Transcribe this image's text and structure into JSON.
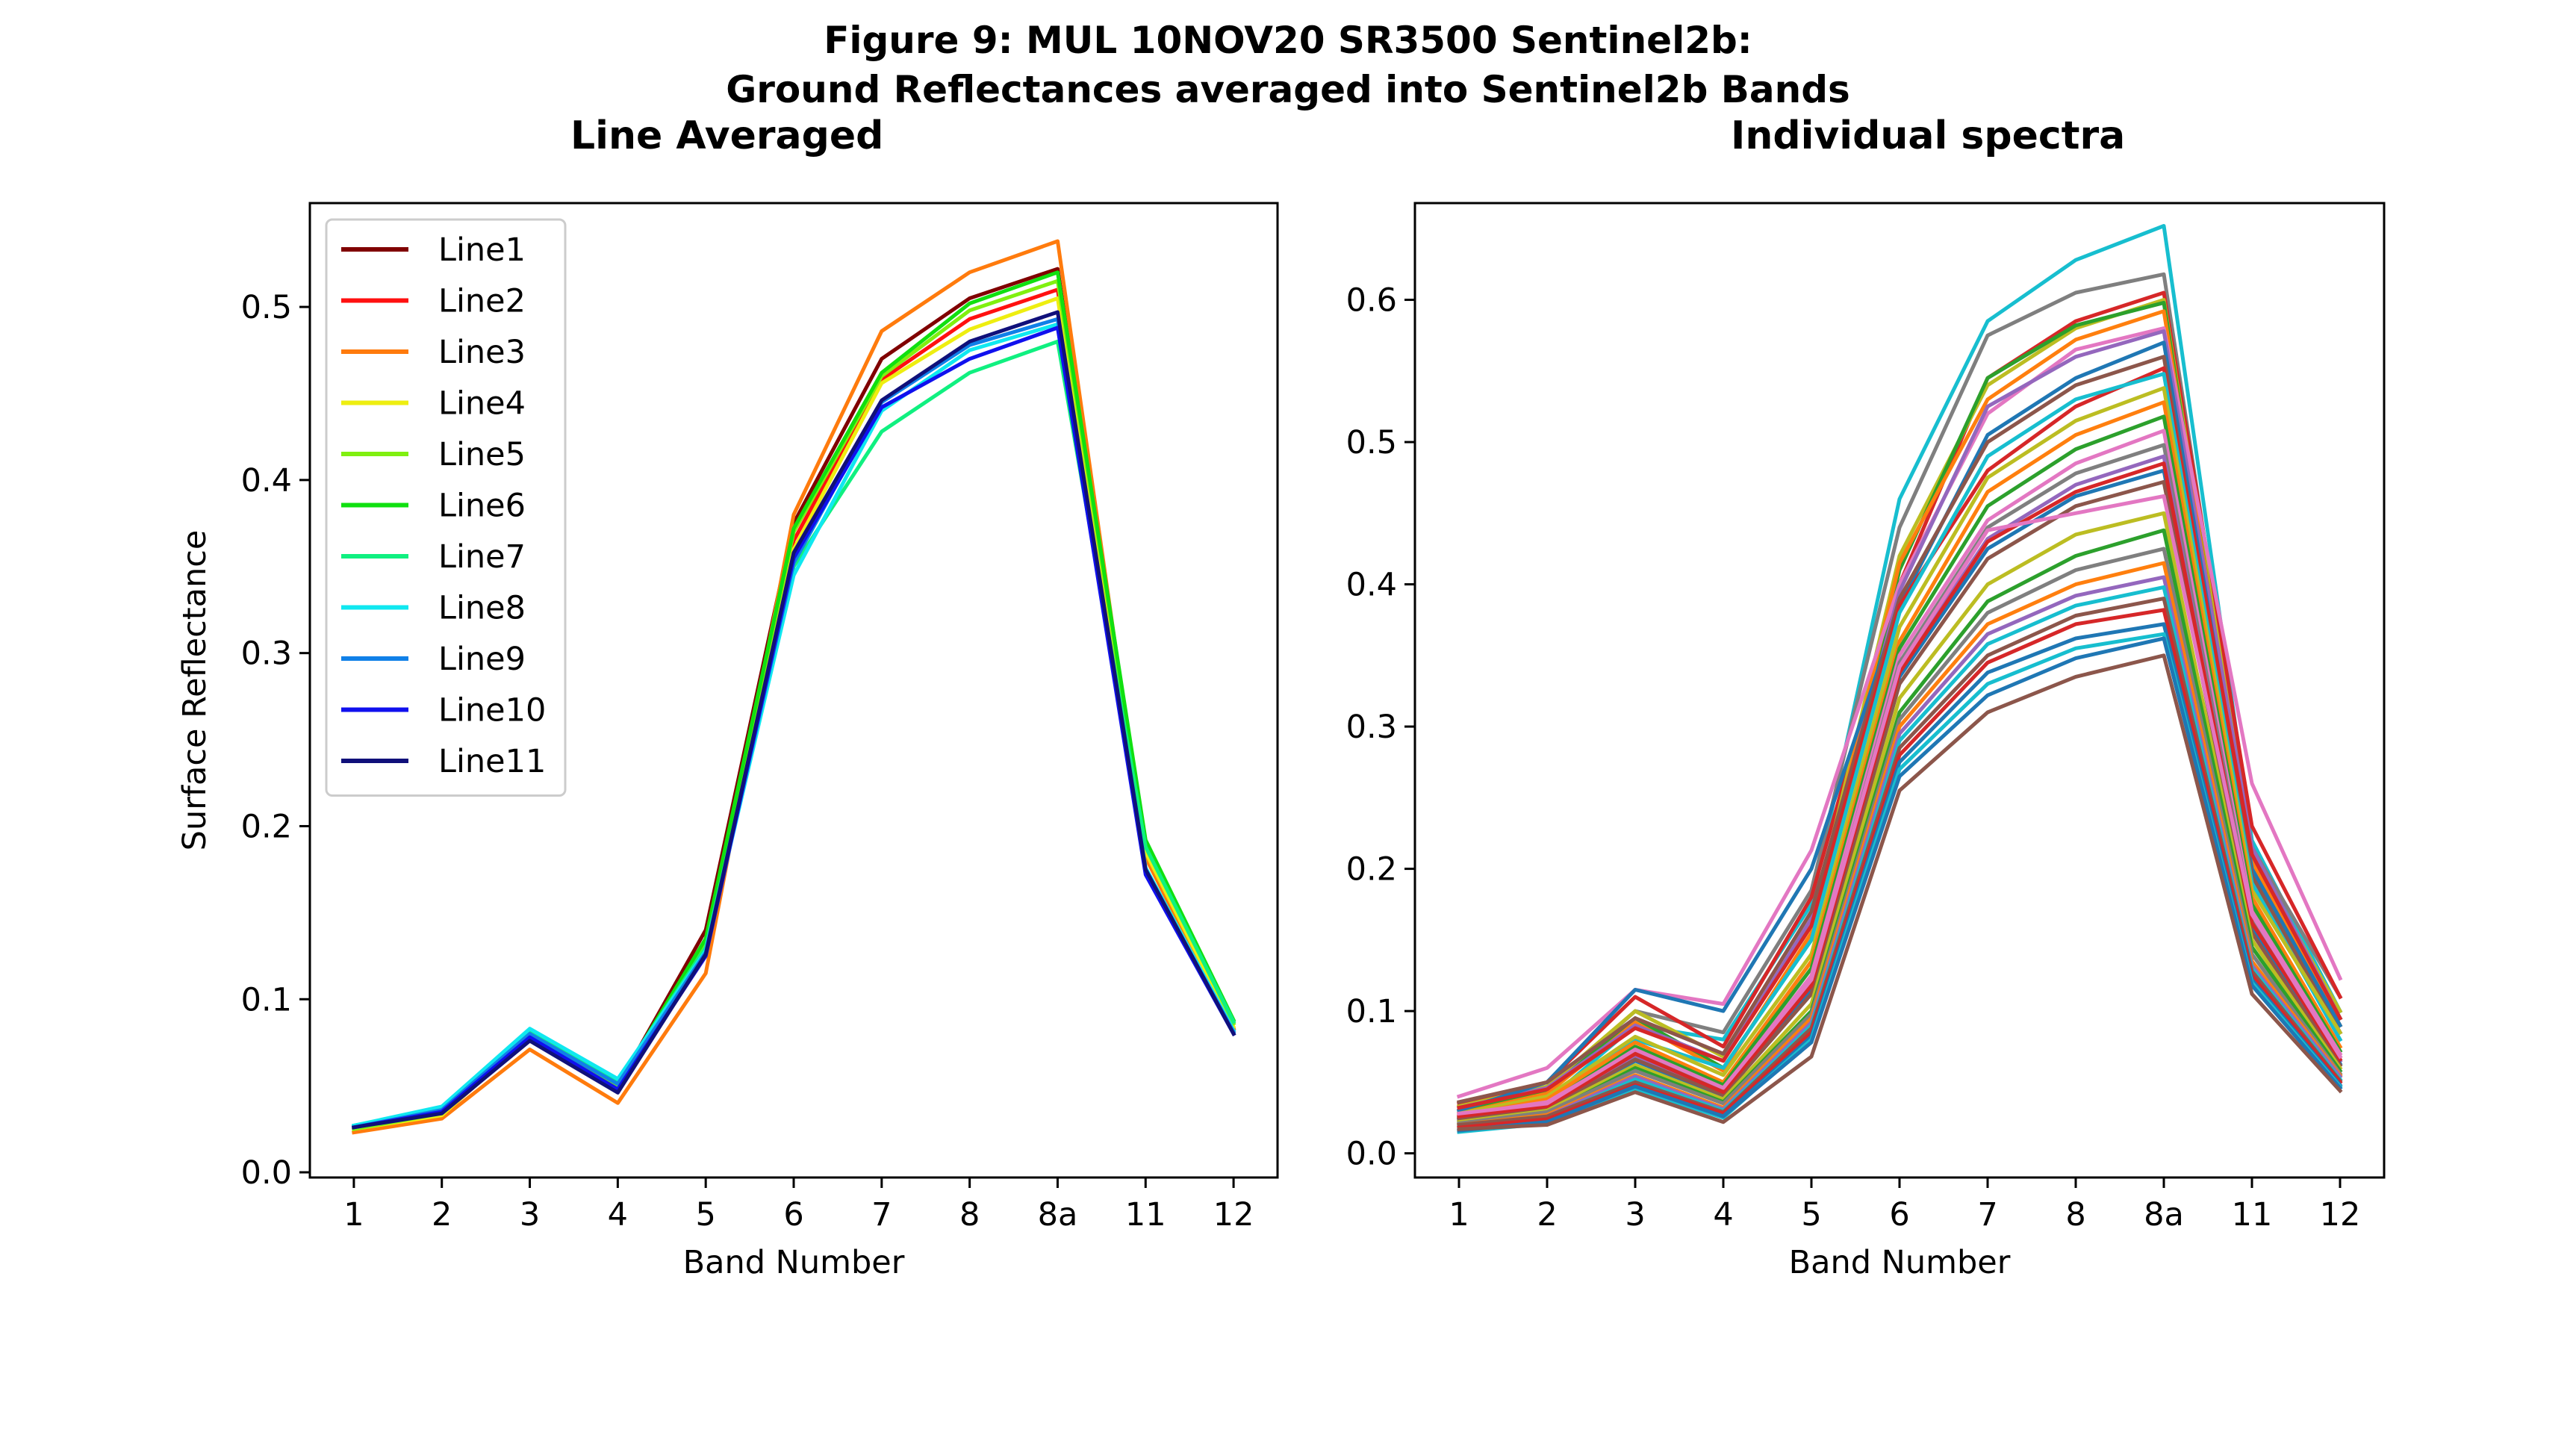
{
  "figure": {
    "title_line1": "Figure 9: MUL 10NOV20 SR3500 Sentinel2b:",
    "title_line2": "Ground Reflectances averaged into Sentinel2b Bands"
  },
  "chart_data": [
    {
      "type": "line",
      "title": "Line Averaged",
      "xlabel": "Band Number",
      "ylabel": "Surface Reflectance",
      "categories": [
        "1",
        "2",
        "3",
        "4",
        "5",
        "6",
        "7",
        "8",
        "8a",
        "11",
        "12"
      ],
      "ylim": [
        -0.003,
        0.56
      ],
      "yticks": [
        "0.0",
        "0.1",
        "0.2",
        "0.3",
        "0.4",
        "0.5"
      ],
      "legend_position": "upper-left",
      "grid": false,
      "series": [
        {
          "name": "Line1",
          "color": "#800000",
          "values": [
            0.025,
            0.034,
            0.08,
            0.05,
            0.14,
            0.375,
            0.47,
            0.505,
            0.522,
            0.185,
            0.083
          ]
        },
        {
          "name": "Line2",
          "color": "#ff1010",
          "values": [
            0.025,
            0.033,
            0.078,
            0.048,
            0.125,
            0.365,
            0.458,
            0.493,
            0.51,
            0.182,
            0.082
          ]
        },
        {
          "name": "Line3",
          "color": "#ff7b0d",
          "values": [
            0.023,
            0.031,
            0.071,
            0.04,
            0.115,
            0.38,
            0.486,
            0.52,
            0.538,
            0.182,
            0.083
          ]
        },
        {
          "name": "Line4",
          "color": "#eeee10",
          "values": [
            0.025,
            0.033,
            0.078,
            0.048,
            0.13,
            0.36,
            0.456,
            0.487,
            0.505,
            0.185,
            0.084
          ]
        },
        {
          "name": "Line5",
          "color": "#80f010",
          "values": [
            0.025,
            0.034,
            0.079,
            0.05,
            0.133,
            0.37,
            0.46,
            0.498,
            0.515,
            0.19,
            0.086
          ]
        },
        {
          "name": "Line6",
          "color": "#10e010",
          "values": [
            0.026,
            0.035,
            0.08,
            0.051,
            0.135,
            0.372,
            0.462,
            0.502,
            0.52,
            0.192,
            0.088
          ]
        },
        {
          "name": "Line7",
          "color": "#10f080",
          "values": [
            0.027,
            0.037,
            0.082,
            0.053,
            0.13,
            0.35,
            0.428,
            0.462,
            0.48,
            0.188,
            0.087
          ]
        },
        {
          "name": "Line8",
          "color": "#10e8f0",
          "values": [
            0.027,
            0.038,
            0.083,
            0.054,
            0.128,
            0.345,
            0.44,
            0.475,
            0.49,
            0.176,
            0.082
          ]
        },
        {
          "name": "Line9",
          "color": "#1080e8",
          "values": [
            0.026,
            0.036,
            0.08,
            0.051,
            0.127,
            0.352,
            0.445,
            0.478,
            0.493,
            0.174,
            0.081
          ]
        },
        {
          "name": "Line10",
          "color": "#1010ee",
          "values": [
            0.026,
            0.035,
            0.078,
            0.048,
            0.125,
            0.355,
            0.442,
            0.47,
            0.488,
            0.172,
            0.08
          ]
        },
        {
          "name": "Line11",
          "color": "#10107a",
          "values": [
            0.026,
            0.034,
            0.076,
            0.046,
            0.126,
            0.358,
            0.446,
            0.48,
            0.497,
            0.175,
            0.08
          ]
        }
      ]
    },
    {
      "type": "line",
      "title": "Individual spectra",
      "xlabel": "Band Number",
      "ylabel": "",
      "categories": [
        "1",
        "2",
        "3",
        "4",
        "5",
        "6",
        "7",
        "8",
        "8a",
        "11",
        "12"
      ],
      "ylim": [
        -0.017,
        0.668
      ],
      "yticks": [
        "0.0",
        "0.1",
        "0.2",
        "0.3",
        "0.4",
        "0.5",
        "0.6"
      ],
      "grid": false,
      "series": [
        {
          "color": "#17becf",
          "values": [
            0.024,
            0.037,
            0.09,
            0.08,
            0.175,
            0.46,
            0.585,
            0.628,
            0.652,
            0.22,
            0.1
          ]
        },
        {
          "color": "#7f7f7f",
          "values": [
            0.03,
            0.045,
            0.1,
            0.085,
            0.185,
            0.44,
            0.575,
            0.605,
            0.618,
            0.215,
            0.11
          ]
        },
        {
          "color": "#d62728",
          "values": [
            0.035,
            0.05,
            0.11,
            0.075,
            0.18,
            0.4,
            0.545,
            0.585,
            0.605,
            0.23,
            0.11
          ]
        },
        {
          "color": "#bcbd22",
          "values": [
            0.033,
            0.047,
            0.1,
            0.068,
            0.16,
            0.42,
            0.54,
            0.58,
            0.6,
            0.21,
            0.1
          ]
        },
        {
          "color": "#2ca02c",
          "values": [
            0.03,
            0.044,
            0.095,
            0.06,
            0.15,
            0.41,
            0.545,
            0.582,
            0.598,
            0.2,
            0.095
          ]
        },
        {
          "color": "#ff7f0e",
          "values": [
            0.028,
            0.042,
            0.092,
            0.058,
            0.155,
            0.415,
            0.53,
            0.572,
            0.592,
            0.205,
            0.09
          ]
        },
        {
          "color": "#e377c2",
          "values": [
            0.04,
            0.06,
            0.115,
            0.105,
            0.213,
            0.4,
            0.52,
            0.565,
            0.58,
            0.26,
            0.123
          ]
        },
        {
          "color": "#9467bd",
          "values": [
            0.032,
            0.046,
            0.09,
            0.065,
            0.165,
            0.395,
            0.525,
            0.56,
            0.578,
            0.215,
            0.095
          ]
        },
        {
          "color": "#1f77b4",
          "values": [
            0.03,
            0.05,
            0.115,
            0.1,
            0.2,
            0.385,
            0.505,
            0.545,
            0.57,
            0.2,
            0.09
          ]
        },
        {
          "color": "#8c564b",
          "values": [
            0.036,
            0.05,
            0.095,
            0.07,
            0.17,
            0.39,
            0.5,
            0.54,
            0.56,
            0.195,
            0.085
          ]
        },
        {
          "color": "#d62728",
          "values": [
            0.032,
            0.045,
            0.088,
            0.065,
            0.16,
            0.385,
            0.48,
            0.525,
            0.552,
            0.21,
            0.095
          ]
        },
        {
          "color": "#17becf",
          "values": [
            0.025,
            0.038,
            0.08,
            0.06,
            0.15,
            0.38,
            0.49,
            0.53,
            0.548,
            0.19,
            0.08
          ]
        },
        {
          "color": "#bcbd22",
          "values": [
            0.028,
            0.04,
            0.082,
            0.055,
            0.14,
            0.37,
            0.475,
            0.515,
            0.538,
            0.185,
            0.085
          ]
        },
        {
          "color": "#ff7f0e",
          "values": [
            0.026,
            0.038,
            0.078,
            0.05,
            0.135,
            0.36,
            0.465,
            0.505,
            0.528,
            0.18,
            0.075
          ]
        },
        {
          "color": "#2ca02c",
          "values": [
            0.024,
            0.035,
            0.075,
            0.048,
            0.13,
            0.355,
            0.455,
            0.495,
            0.518,
            0.175,
            0.072
          ]
        },
        {
          "color": "#e377c2",
          "values": [
            0.027,
            0.036,
            0.072,
            0.045,
            0.125,
            0.35,
            0.445,
            0.485,
            0.508,
            0.17,
            0.07
          ]
        },
        {
          "color": "#7f7f7f",
          "values": [
            0.025,
            0.034,
            0.07,
            0.044,
            0.12,
            0.345,
            0.44,
            0.478,
            0.498,
            0.165,
            0.068
          ]
        },
        {
          "color": "#9467bd",
          "values": [
            0.023,
            0.032,
            0.068,
            0.042,
            0.118,
            0.34,
            0.432,
            0.47,
            0.49,
            0.16,
            0.065
          ]
        },
        {
          "color": "#1f77b4",
          "values": [
            0.022,
            0.03,
            0.065,
            0.04,
            0.115,
            0.335,
            0.425,
            0.462,
            0.48,
            0.158,
            0.063
          ]
        },
        {
          "color": "#8c564b",
          "values": [
            0.024,
            0.031,
            0.066,
            0.041,
            0.112,
            0.33,
            0.418,
            0.455,
            0.472,
            0.155,
            0.062
          ]
        },
        {
          "color": "#d62728",
          "values": [
            0.026,
            0.033,
            0.07,
            0.043,
            0.118,
            0.338,
            0.43,
            0.465,
            0.485,
            0.162,
            0.066
          ]
        },
        {
          "color": "#e377c2",
          "values": [
            0.028,
            0.035,
            0.073,
            0.046,
            0.122,
            0.342,
            0.438,
            0.45,
            0.462,
            0.168,
            0.068
          ]
        },
        {
          "color": "#bcbd22",
          "values": [
            0.022,
            0.03,
            0.062,
            0.038,
            0.105,
            0.32,
            0.4,
            0.435,
            0.45,
            0.15,
            0.06
          ]
        },
        {
          "color": "#2ca02c",
          "values": [
            0.02,
            0.028,
            0.06,
            0.036,
            0.1,
            0.31,
            0.388,
            0.42,
            0.438,
            0.145,
            0.058
          ]
        },
        {
          "color": "#7f7f7f",
          "values": [
            0.021,
            0.029,
            0.058,
            0.035,
            0.098,
            0.305,
            0.38,
            0.41,
            0.425,
            0.14,
            0.056
          ]
        },
        {
          "color": "#ff7f0e",
          "values": [
            0.02,
            0.027,
            0.055,
            0.032,
            0.095,
            0.3,
            0.372,
            0.4,
            0.415,
            0.135,
            0.055
          ]
        },
        {
          "color": "#9467bd",
          "values": [
            0.019,
            0.026,
            0.054,
            0.031,
            0.092,
            0.295,
            0.365,
            0.392,
            0.405,
            0.132,
            0.054
          ]
        },
        {
          "color": "#17becf",
          "values": [
            0.018,
            0.025,
            0.052,
            0.03,
            0.09,
            0.29,
            0.358,
            0.385,
            0.398,
            0.13,
            0.052
          ]
        },
        {
          "color": "#8c564b",
          "values": [
            0.02,
            0.026,
            0.05,
            0.029,
            0.088,
            0.285,
            0.35,
            0.378,
            0.39,
            0.128,
            0.051
          ]
        },
        {
          "color": "#d62728",
          "values": [
            0.018,
            0.024,
            0.048,
            0.028,
            0.085,
            0.28,
            0.345,
            0.372,
            0.382,
            0.125,
            0.05
          ]
        },
        {
          "color": "#1f77b4",
          "values": [
            0.016,
            0.022,
            0.046,
            0.026,
            0.082,
            0.275,
            0.338,
            0.362,
            0.372,
            0.122,
            0.048
          ]
        },
        {
          "color": "#17becf",
          "values": [
            0.015,
            0.021,
            0.045,
            0.025,
            0.08,
            0.27,
            0.33,
            0.355,
            0.365,
            0.12,
            0.047
          ]
        },
        {
          "color": "#1f77b4",
          "values": [
            0.016,
            0.022,
            0.047,
            0.026,
            0.078,
            0.265,
            0.322,
            0.348,
            0.362,
            0.118,
            0.046
          ]
        },
        {
          "color": "#8c564b",
          "values": [
            0.017,
            0.02,
            0.043,
            0.022,
            0.068,
            0.255,
            0.31,
            0.335,
            0.35,
            0.112,
            0.044
          ]
        }
      ]
    }
  ]
}
